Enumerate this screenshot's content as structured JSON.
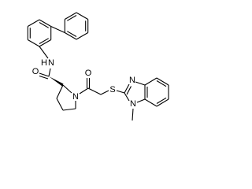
{
  "atoms": [
    {
      "label": "O"
    },
    {
      "label": "N"
    },
    {
      "label": "H"
    },
    {
      "label": "N"
    },
    {
      "label": "O"
    },
    {
      "label": "S"
    },
    {
      "label": "N"
    },
    {
      "label": "N"
    }
  ]
}
